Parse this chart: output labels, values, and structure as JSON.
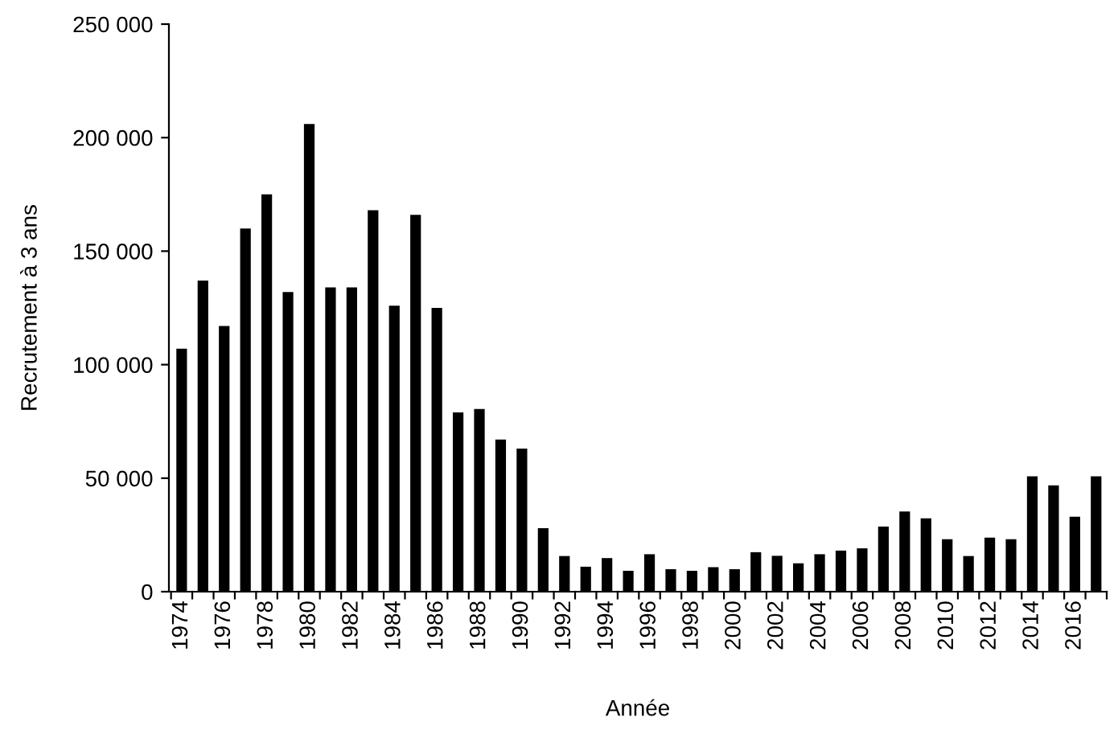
{
  "chart_data": {
    "type": "bar",
    "xlabel": "Année",
    "ylabel": "Recrutement à 3 ans",
    "categories": [
      "1974",
      null,
      "1976",
      null,
      "1978",
      null,
      "1980",
      null,
      "1982",
      null,
      "1984",
      null,
      "1986",
      null,
      "1988",
      null,
      "1990",
      null,
      "1992",
      null,
      "1994",
      null,
      "1996",
      null,
      "1998",
      null,
      "2000",
      null,
      "2002",
      null,
      "2004",
      null,
      "2006",
      null,
      "2008",
      null,
      "2010",
      null,
      "2012",
      null,
      "2014",
      null,
      "2016",
      null
    ],
    "values": [
      107000,
      137000,
      117000,
      160000,
      175000,
      132000,
      206000,
      134000,
      134000,
      168000,
      126000,
      166000,
      125000,
      79000,
      80500,
      67000,
      63000,
      28000,
      15700,
      11000,
      14800,
      9200,
      16500,
      9900,
      9200,
      10800,
      9900,
      17400,
      15800,
      12500,
      16500,
      18100,
      19100,
      28700,
      35300,
      32300,
      23100,
      15700,
      23800,
      23100,
      50800,
      46800,
      33000,
      50800
    ],
    "color": "#000000",
    "ylim": [
      0,
      250000
    ],
    "yticks": [
      0,
      {
        "value": 50000,
        "label": "50 000"
      },
      {
        "value": 100000,
        "label": "100 000"
      },
      {
        "value": 150000,
        "label": "150 000"
      },
      {
        "value": 200000,
        "label": "200 000"
      },
      {
        "value": 250000,
        "label": "250 000"
      }
    ],
    "grid": false,
    "legend": false
  }
}
